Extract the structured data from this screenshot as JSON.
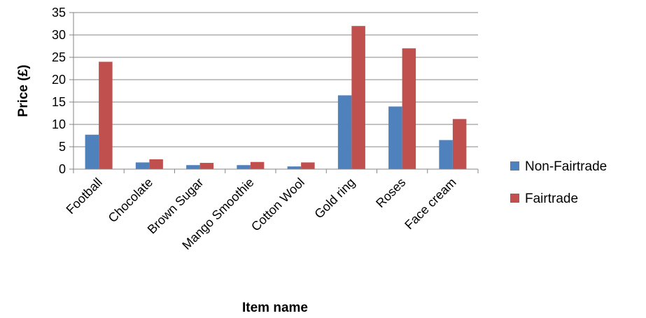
{
  "chart_data": {
    "type": "bar",
    "title": "",
    "xlabel": "Item name",
    "ylabel": "Price (£)",
    "ylim": [
      0,
      35
    ],
    "yticks": [
      0,
      5,
      10,
      15,
      20,
      25,
      30,
      35
    ],
    "grid": true,
    "legend_position": "right",
    "categories": [
      "Football",
      "Chocolate",
      "Brown Sugar",
      "Mango Smoothie",
      "Cotton Wool",
      "Gold ring",
      "Roses",
      "Face cream"
    ],
    "series": [
      {
        "name": "Non-Fairtrade",
        "color": "#4F81BD",
        "values": [
          7.7,
          1.5,
          0.9,
          0.9,
          0.6,
          16.5,
          14.0,
          6.5
        ]
      },
      {
        "name": "Fairtrade",
        "color": "#C0504D",
        "values": [
          24.0,
          2.2,
          1.4,
          1.6,
          1.5,
          32.0,
          27.0,
          11.2
        ]
      }
    ]
  }
}
